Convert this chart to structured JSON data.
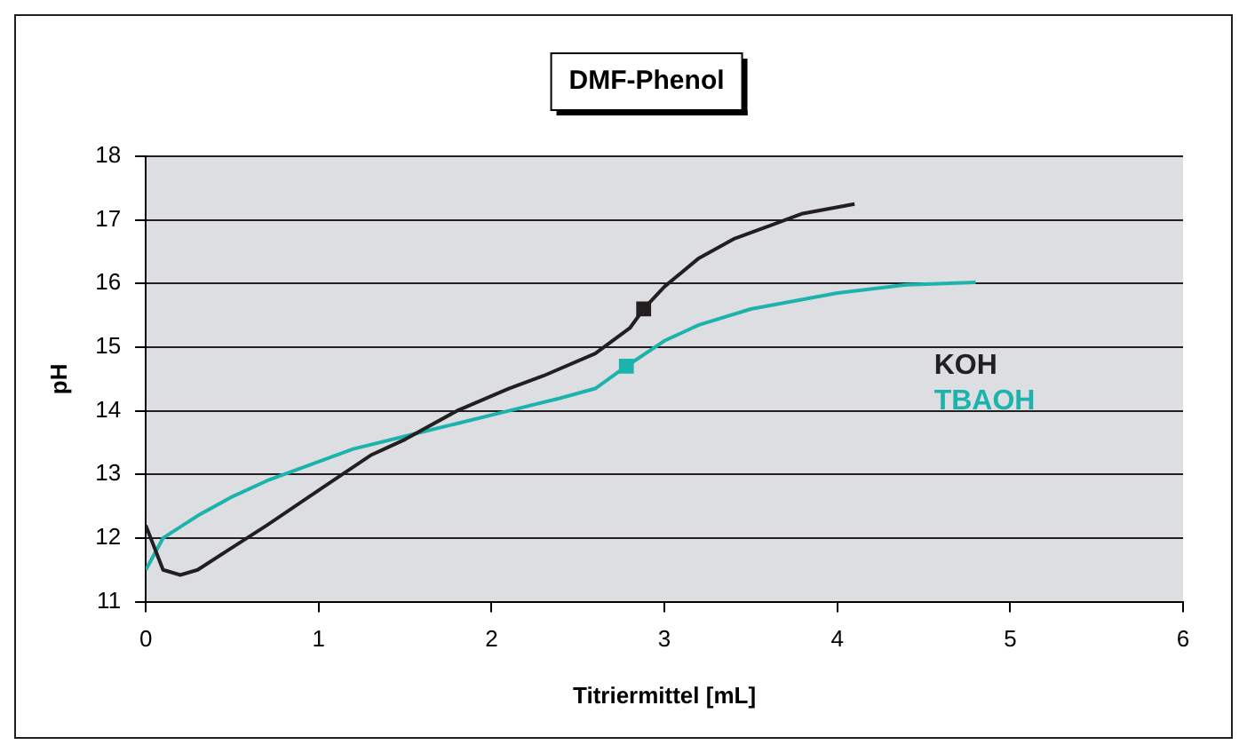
{
  "chart_data": {
    "type": "line",
    "title": "DMF-Phenol",
    "xlabel": "Titriermittel [mL]",
    "ylabel": "pH",
    "xlim": [
      0,
      6
    ],
    "xticks": [
      0,
      1,
      2,
      3,
      4,
      5,
      6
    ],
    "ylim": [
      11,
      18
    ],
    "yticks": [
      11,
      12,
      13,
      14,
      15,
      16,
      17,
      18
    ],
    "grid": "y",
    "legend": false,
    "marker": "none",
    "series": [
      {
        "name": "KOH",
        "color": "#231f20",
        "x": [
          0,
          0.1,
          0.2,
          0.3,
          0.5,
          0.7,
          1.0,
          1.3,
          1.5,
          1.8,
          2.1,
          2.3,
          2.6,
          2.8,
          2.88,
          3.0,
          3.2,
          3.4,
          3.6,
          3.8,
          4.1
        ],
        "values": [
          12.2,
          11.5,
          11.42,
          11.5,
          11.85,
          12.2,
          12.75,
          13.3,
          13.55,
          14.0,
          14.35,
          14.55,
          14.9,
          15.3,
          15.6,
          15.95,
          16.4,
          16.7,
          16.9,
          17.1,
          17.25
        ]
      },
      {
        "name": "TBAOH",
        "color": "#1db3ad",
        "x": [
          0,
          0.1,
          0.3,
          0.5,
          0.7,
          1.0,
          1.2,
          1.5,
          1.8,
          2.1,
          2.4,
          2.6,
          2.78,
          3.0,
          3.2,
          3.5,
          4.0,
          4.4,
          4.8
        ],
        "values": [
          11.5,
          12.0,
          12.35,
          12.65,
          12.9,
          13.2,
          13.4,
          13.6,
          13.8,
          14.0,
          14.2,
          14.35,
          14.7,
          15.1,
          15.35,
          15.6,
          15.85,
          15.98,
          16.02
        ]
      },
      {
        "type": "scatter",
        "marker": "square",
        "color": "#231f20",
        "x": [
          2.88
        ],
        "values": [
          15.6
        ]
      },
      {
        "type": "scatter",
        "marker": "square",
        "color": "#1db3ad",
        "x": [
          2.78
        ],
        "values": [
          14.7
        ]
      }
    ]
  }
}
